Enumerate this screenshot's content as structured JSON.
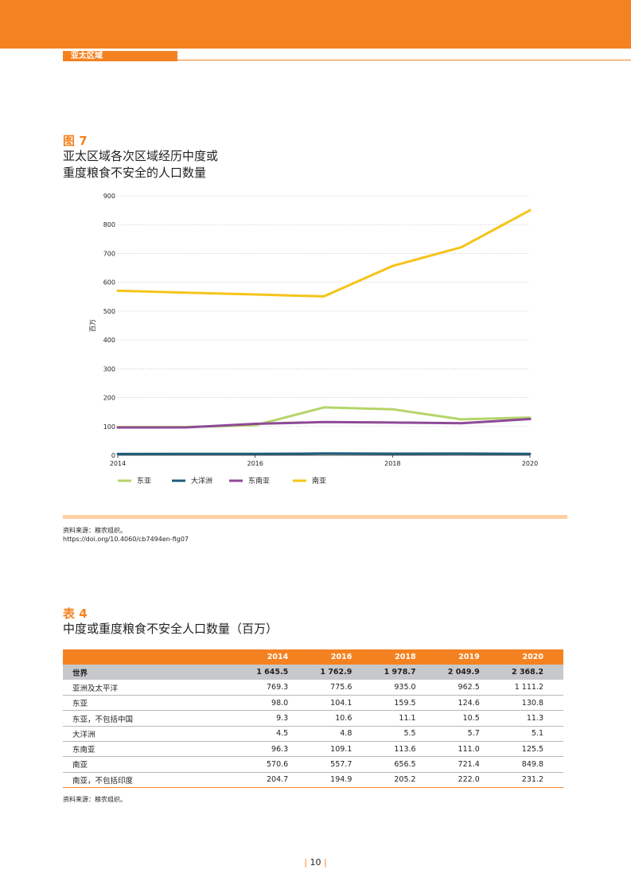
{
  "header": {
    "section": "亚太区域"
  },
  "figure": {
    "label": "图 7",
    "title_line1": "亚太区域各次区域经历中度或",
    "title_line2": "重度粮食不安全的人口数量",
    "source": "资料来源：粮农组织。",
    "doi": "https://doi.org/10.4060/cb7494en-fig07"
  },
  "chart_data": {
    "type": "line",
    "x": [
      2014,
      2015,
      2016,
      2017,
      2018,
      2019,
      2020
    ],
    "xticks": [
      "2014",
      "2016",
      "2018",
      "2020"
    ],
    "ylim": [
      0,
      900
    ],
    "yticks": [
      "0",
      "100",
      "200",
      "300",
      "400",
      "500",
      "600",
      "700",
      "800",
      "900"
    ],
    "ylabel": "百万",
    "grid": true,
    "legend": "bottom",
    "series": [
      {
        "name": "东亚",
        "color": "#b5d56a",
        "values": [
          98.0,
          98.0,
          104.1,
          166.0,
          159.5,
          124.6,
          130.8
        ]
      },
      {
        "name": "大洋洲",
        "color": "#1f5c7a",
        "values": [
          4.5,
          4.6,
          4.8,
          6.0,
          5.5,
          5.7,
          5.1
        ]
      },
      {
        "name": "东南亚",
        "color": "#8e4a97",
        "values": [
          96.3,
          96.5,
          109.1,
          115.0,
          113.6,
          111.0,
          125.5
        ]
      },
      {
        "name": "南亚",
        "color": "#f5c419",
        "values": [
          570.6,
          564.0,
          557.7,
          551.0,
          656.5,
          721.4,
          849.8
        ]
      }
    ]
  },
  "table": {
    "label": "表 4",
    "title": "中度或重度粮食不安全人口数量（百万）",
    "columns": [
      "",
      "2014",
      "2016",
      "2018",
      "2019",
      "2020"
    ],
    "rows": [
      {
        "label": "世界",
        "values": [
          "1 645.5",
          "1 762.9",
          "1 978.7",
          "2 049.9",
          "2 368.2"
        ]
      },
      {
        "label": "亚洲及太平洋",
        "values": [
          "769.3",
          "775.6",
          "935.0",
          "962.5",
          "1 111.2"
        ]
      },
      {
        "label": "东亚",
        "values": [
          "98.0",
          "104.1",
          "159.5",
          "124.6",
          "130.8"
        ]
      },
      {
        "label": "东亚，不包括中国",
        "values": [
          "9.3",
          "10.6",
          "11.1",
          "10.5",
          "11.3"
        ]
      },
      {
        "label": "大洋洲",
        "values": [
          "4.5",
          "4.8",
          "5.5",
          "5.7",
          "5.1"
        ]
      },
      {
        "label": "东南亚",
        "values": [
          "96.3",
          "109.1",
          "113.6",
          "111.0",
          "125.5"
        ]
      },
      {
        "label": "南亚",
        "values": [
          "570.6",
          "557.7",
          "656.5",
          "721.4",
          "849.8"
        ]
      },
      {
        "label": "南亚，不包括印度",
        "values": [
          "204.7",
          "194.9",
          "205.2",
          "222.0",
          "231.2"
        ]
      }
    ],
    "source": "资料来源：粮农组织。"
  },
  "page": {
    "number": "10"
  }
}
